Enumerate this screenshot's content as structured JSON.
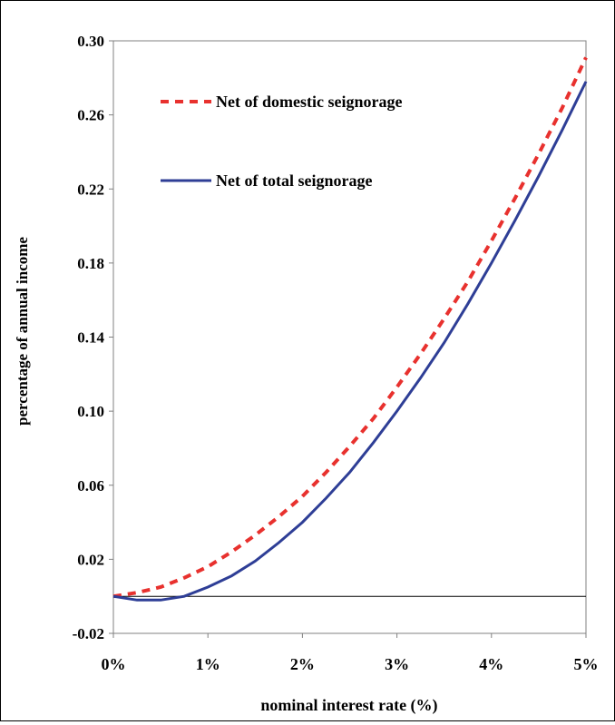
{
  "chart_data": {
    "type": "line",
    "title": "",
    "xlabel": "nominal interest rate (%)",
    "ylabel": "percentage of annual income",
    "xlim": [
      0,
      5
    ],
    "ylim": [
      -0.02,
      0.3
    ],
    "x_tick_values": [
      0,
      1,
      2,
      3,
      4,
      5
    ],
    "x_tick_labels": [
      "0%",
      "1%",
      "2%",
      "3%",
      "4%",
      "5%"
    ],
    "y_tick_values": [
      0.3,
      0.26,
      0.22,
      0.18,
      0.14,
      0.1,
      0.06,
      0.02,
      -0.02
    ],
    "y_tick_labels": [
      "0.30",
      "0.26",
      "0.22",
      "0.18",
      "0.14",
      "0.10",
      "0.06",
      "0.02",
      "-0.02"
    ],
    "grid": false,
    "reference_line_y": 0,
    "legend_position": "top-left",
    "x": [
      0,
      0.25,
      0.5,
      0.75,
      1,
      1.25,
      1.5,
      1.75,
      2,
      2.25,
      2.5,
      2.75,
      3,
      3.25,
      3.5,
      3.75,
      4,
      4.25,
      4.5,
      4.75,
      5
    ],
    "series": [
      {
        "name": "Net of domestic seignorage",
        "color": "#e8312e",
        "dash": "dashed",
        "values": [
          0.0,
          0.002,
          0.005,
          0.01,
          0.016,
          0.024,
          0.033,
          0.043,
          0.054,
          0.067,
          0.081,
          0.096,
          0.113,
          0.131,
          0.15,
          0.17,
          0.192,
          0.215,
          0.239,
          0.264,
          0.291
        ]
      },
      {
        "name": "Net of total seignorage",
        "color": "#2e3e96",
        "dash": "solid",
        "values": [
          0.0,
          -0.002,
          -0.002,
          0.0,
          0.005,
          0.011,
          0.019,
          0.029,
          0.04,
          0.053,
          0.067,
          0.083,
          0.1,
          0.118,
          0.137,
          0.158,
          0.18,
          0.203,
          0.227,
          0.252,
          0.278
        ]
      }
    ]
  }
}
